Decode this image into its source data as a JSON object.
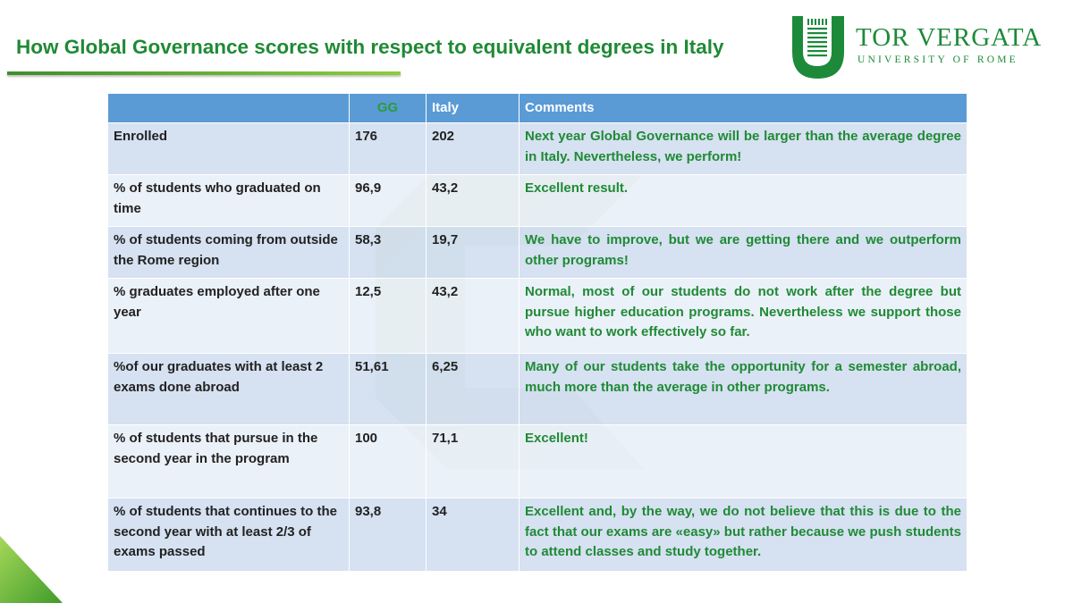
{
  "page": {
    "title": "How Global Governance scores with respect to equivalent degrees in Italy"
  },
  "logo": {
    "name": "TOR VERGATA",
    "subtitle": "UNIVERSITY OF ROME",
    "brand_color": "#1d8a3a"
  },
  "table": {
    "headers": [
      "",
      "GG",
      "Italy",
      "Comments"
    ],
    "header_color": "#5b9bd5",
    "rows": [
      {
        "metric": "Enrolled",
        "gg": "176",
        "italy": "202",
        "comment": "Next year Global Governance will be larger than the average degree in Italy. Nevertheless, we perform!"
      },
      {
        "metric": "% of students who graduated on time",
        "gg": "96,9",
        "italy": "43,2",
        "comment": "Excellent result."
      },
      {
        "metric": "% of students coming from outside the Rome region",
        "gg": "58,3",
        "italy": "19,7",
        "comment": "We have to improve, but we are getting there and we outperform other programs!"
      },
      {
        "metric": "% graduates employed after one year",
        "gg": "12,5",
        "italy": "43,2",
        "comment": "Normal, most of our students do not work after the degree but pursue higher education programs. Nevertheless we support those who want to work effectively so far."
      },
      {
        "metric": "%of our graduates with at least 2 exams done abroad",
        "gg": "51,61",
        "italy": "6,25",
        "comment": "Many of our students take the opportunity for a semester abroad, much more than the average in other programs."
      },
      {
        "metric": "% of students that pursue in the second year in the program",
        "gg": "100",
        "italy": "71,1",
        "comment": "Excellent!"
      },
      {
        "metric": "% of students that continues to the second year with at least 2/3 of exams passed",
        "gg": "93,8",
        "italy": "34",
        "comment": "Excellent and, by the way, we do not believe that this is due to the fact that our exams are «easy» but rather because we push students to attend classes and study together."
      }
    ]
  }
}
